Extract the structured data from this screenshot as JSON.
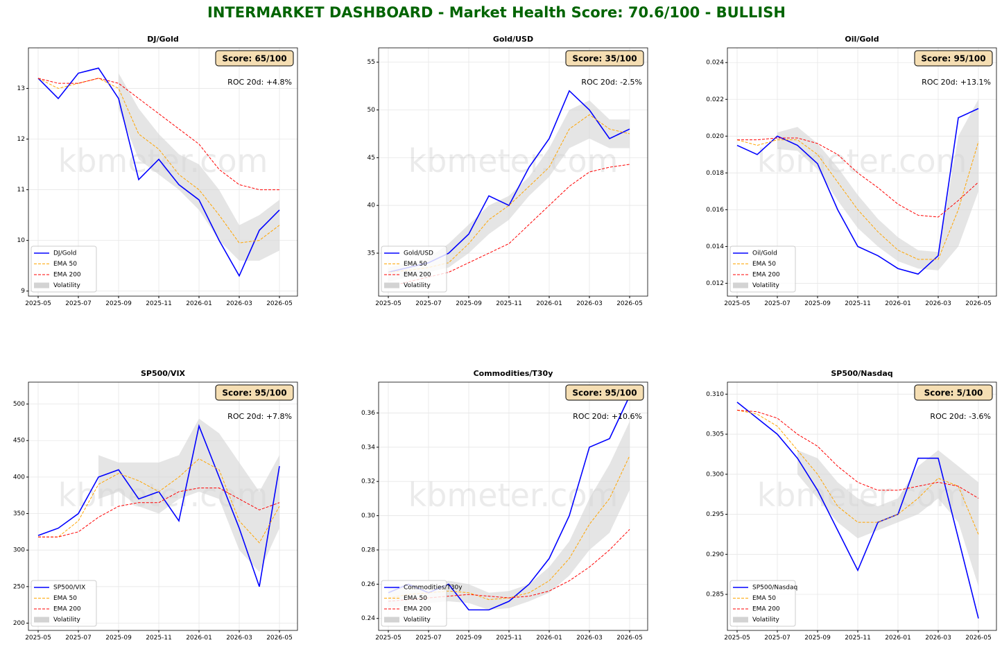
{
  "title": "INTERMARKET DASHBOARD - Market Health Score: 70.6/100 - BULLISH",
  "chart_data": [
    {
      "type": "line",
      "title": "DJ/Gold",
      "score": "Score: 65/100",
      "annotation": "ROC 20d: +4.8%",
      "watermark": "kbmeter.com",
      "x": [
        "2025-05",
        "2025-06",
        "2025-07",
        "2025-08",
        "2025-09",
        "2025-10",
        "2025-11",
        "2025-12",
        "2026-01",
        "2026-02",
        "2026-03",
        "2026-04",
        "2026-05"
      ],
      "xticks": [
        "2025-05",
        "2025-07",
        "2025-09",
        "2025-11",
        "2026-01",
        "2026-03",
        "2026-05"
      ],
      "ylim": [
        8.9,
        13.8
      ],
      "yticks": [
        9,
        10,
        11,
        12,
        13
      ],
      "grid": true,
      "series": [
        {
          "name": "DJ/Gold",
          "color": "#0000ff",
          "values": [
            13.2,
            12.8,
            13.3,
            13.4,
            12.8,
            11.2,
            11.6,
            11.1,
            10.8,
            10.0,
            9.3,
            10.2,
            10.6
          ]
        },
        {
          "name": "EMA 50",
          "color": "#ffa500",
          "dashed": true,
          "values": [
            13.2,
            13.0,
            13.1,
            13.2,
            13.0,
            12.1,
            11.8,
            11.3,
            11.0,
            10.5,
            9.95,
            10.0,
            10.3
          ]
        },
        {
          "name": "EMA 200",
          "color": "#ff0000",
          "dashed": true,
          "values": [
            13.2,
            13.1,
            13.1,
            13.2,
            13.1,
            12.8,
            12.5,
            12.2,
            11.9,
            11.4,
            11.1,
            11.0,
            11.0
          ]
        },
        {
          "name": "Volatility",
          "color": "#d3d3d3",
          "upper": [
            null,
            null,
            null,
            null,
            13.3,
            12.6,
            12.1,
            11.7,
            11.5,
            11.0,
            10.3,
            10.5,
            10.8
          ],
          "lower": [
            null,
            null,
            null,
            null,
            12.6,
            11.6,
            11.3,
            11.0,
            10.6,
            10.0,
            9.6,
            9.6,
            9.8
          ]
        }
      ]
    },
    {
      "type": "line",
      "title": "Gold/USD",
      "score": "Score: 35/100",
      "annotation": "ROC 20d: -2.5%",
      "watermark": "kbmeter.com",
      "x": [
        "2025-05",
        "2025-06",
        "2025-07",
        "2025-08",
        "2025-09",
        "2025-10",
        "2025-11",
        "2025-12",
        "2026-01",
        "2026-02",
        "2026-03",
        "2026-04",
        "2026-05"
      ],
      "xticks": [
        "2025-05",
        "2025-07",
        "2025-09",
        "2025-11",
        "2026-01",
        "2026-03",
        "2026-05"
      ],
      "ylim": [
        30.5,
        56.5
      ],
      "yticks": [
        35,
        40,
        45,
        50,
        55
      ],
      "grid": true,
      "series": [
        {
          "name": "Gold/USD",
          "color": "#0000ff",
          "values": [
            33,
            33.5,
            34,
            35,
            37,
            41,
            40,
            44,
            47,
            52,
            50,
            47,
            48
          ]
        },
        {
          "name": "EMA 50",
          "color": "#ffa500",
          "dashed": true,
          "values": [
            33,
            33.2,
            33.5,
            34,
            36,
            38.5,
            40,
            42,
            44,
            48,
            49.5,
            48,
            47.5
          ]
        },
        {
          "name": "EMA 200",
          "color": "#ff0000",
          "dashed": true,
          "values": [
            31.5,
            32,
            32.5,
            33,
            34,
            35,
            36,
            38,
            40,
            42,
            43.5,
            44,
            44.3
          ]
        },
        {
          "name": "Volatility",
          "color": "#d3d3d3",
          "upper": [
            33.5,
            34,
            34.5,
            36,
            38,
            40,
            41,
            43,
            46,
            50,
            51,
            49,
            49
          ],
          "lower": [
            32,
            32.5,
            33,
            33.5,
            35,
            37,
            38.5,
            41,
            43,
            46,
            47,
            46,
            46
          ]
        }
      ]
    },
    {
      "type": "line",
      "title": "Oil/Gold",
      "score": "Score: 95/100",
      "annotation": "ROC 20d: +13.1%",
      "watermark": "kbmeter.com",
      "x": [
        "2025-05",
        "2025-06",
        "2025-07",
        "2025-08",
        "2025-09",
        "2025-10",
        "2025-11",
        "2025-12",
        "2026-01",
        "2026-02",
        "2026-03",
        "2026-04",
        "2026-05"
      ],
      "xticks": [
        "2025-05",
        "2025-07",
        "2025-09",
        "2025-11",
        "2026-01",
        "2026-03",
        "2026-05"
      ],
      "ylim": [
        0.0113,
        0.0248
      ],
      "yticks": [
        0.012,
        0.014,
        0.016,
        0.018,
        {
          "value": 0.02,
          "label": "0.020"
        },
        0.022,
        0.024
      ],
      "grid": true,
      "series": [
        {
          "name": "Oil/Gold",
          "color": "#0000ff",
          "values": [
            0.0195,
            0.019,
            0.02,
            0.0195,
            0.0185,
            0.016,
            0.014,
            0.0135,
            0.0128,
            0.0125,
            0.0135,
            0.021,
            0.0215
          ]
        },
        {
          "name": "EMA 50",
          "color": "#ffa500",
          "dashed": true,
          "values": [
            0.0198,
            0.0195,
            0.0198,
            0.0198,
            0.019,
            0.0175,
            0.016,
            0.0148,
            0.0138,
            0.0133,
            0.0133,
            0.016,
            0.0197
          ]
        },
        {
          "name": "EMA 200",
          "color": "#ff0000",
          "dashed": true,
          "values": [
            0.0198,
            0.0198,
            0.0199,
            0.0199,
            0.0196,
            0.019,
            0.018,
            0.0172,
            0.0163,
            0.0157,
            0.0156,
            0.0165,
            0.0175
          ]
        },
        {
          "name": "Volatility",
          "color": "#d3d3d3",
          "upper": [
            null,
            null,
            0.0202,
            0.0205,
            0.0196,
            0.0183,
            0.0168,
            0.0155,
            0.0145,
            0.0138,
            0.0137,
            0.02,
            0.022
          ],
          "lower": [
            null,
            null,
            0.0193,
            0.0192,
            0.0182,
            0.0165,
            0.015,
            0.014,
            0.0132,
            0.0128,
            0.0127,
            0.014,
            0.017
          ]
        }
      ]
    },
    {
      "type": "line",
      "title": "SP500/VIX",
      "score": "Score: 95/100",
      "annotation": "ROC 20d: +7.8%",
      "watermark": "kbmeter.com",
      "x": [
        "2025-05",
        "2025-06",
        "2025-07",
        "2025-08",
        "2025-09",
        "2025-10",
        "2025-11",
        "2025-12",
        "2026-01",
        "2026-02",
        "2026-03",
        "2026-04",
        "2026-05"
      ],
      "xticks": [
        "2025-05",
        "2025-07",
        "2025-09",
        "2025-11",
        "2026-01",
        "2026-03",
        "2026-05"
      ],
      "ylim": [
        190,
        530
      ],
      "yticks": [
        200,
        250,
        300,
        350,
        400,
        450,
        500
      ],
      "grid": true,
      "series": [
        {
          "name": "SP500/VIX",
          "color": "#0000ff",
          "values": [
            320,
            330,
            350,
            400,
            410,
            370,
            380,
            340,
            470,
            400,
            330,
            250,
            415
          ]
        },
        {
          "name": "EMA 50",
          "color": "#ffa500",
          "dashed": true,
          "values": [
            318,
            318,
            340,
            390,
            405,
            395,
            380,
            400,
            425,
            410,
            340,
            310,
            360
          ]
        },
        {
          "name": "EMA 200",
          "color": "#ff0000",
          "dashed": true,
          "values": [
            318,
            318,
            325,
            345,
            360,
            365,
            365,
            380,
            385,
            385,
            370,
            355,
            365
          ]
        },
        {
          "name": "Volatility",
          "color": "#d3d3d3",
          "upper": [
            null,
            null,
            null,
            430,
            420,
            420,
            420,
            430,
            480,
            460,
            420,
            380,
            430
          ],
          "lower": [
            null,
            null,
            null,
            370,
            380,
            360,
            350,
            370,
            380,
            370,
            300,
            270,
            330
          ]
        }
      ]
    },
    {
      "type": "line",
      "title": "Commodities/T30y",
      "score": "Score: 95/100",
      "annotation": "ROC 20d: +10.6%",
      "watermark": "kbmeter.com",
      "x": [
        "2025-05",
        "2025-06",
        "2025-07",
        "2025-08",
        "2025-09",
        "2025-10",
        "2025-11",
        "2025-12",
        "2026-01",
        "2026-02",
        "2026-03",
        "2026-04",
        "2026-05"
      ],
      "xticks": [
        "2025-05",
        "2025-07",
        "2025-09",
        "2025-11",
        "2026-01",
        "2026-03",
        "2026-05"
      ],
      "ylim": [
        0.233,
        0.378
      ],
      "yticks": [
        0.24,
        0.26,
        0.28,
        {
          "value": 0.3,
          "label": "0.30"
        },
        0.32,
        0.34,
        0.36
      ],
      "grid": true,
      "series": [
        {
          "name": "Commodities/T30y",
          "color": "#0000ff",
          "values": [
            0.255,
            0.26,
            0.255,
            0.26,
            0.245,
            0.245,
            0.25,
            0.26,
            0.275,
            0.3,
            0.34,
            0.345,
            0.37
          ]
        },
        {
          "name": "EMA 50",
          "color": "#ffa500",
          "dashed": true,
          "values": [
            0.252,
            0.254,
            0.255,
            0.256,
            0.255,
            0.251,
            0.252,
            0.255,
            0.262,
            0.275,
            0.295,
            0.31,
            0.335
          ]
        },
        {
          "name": "EMA 200",
          "color": "#ff0000",
          "dashed": true,
          "values": [
            0.25,
            0.251,
            0.252,
            0.253,
            0.254,
            0.253,
            0.252,
            0.253,
            0.256,
            0.262,
            0.27,
            0.28,
            0.292
          ]
        },
        {
          "name": "Volatility",
          "color": "#d3d3d3",
          "upper": [
            0.258,
            0.26,
            0.26,
            0.262,
            0.26,
            0.255,
            0.256,
            0.26,
            0.27,
            0.285,
            0.31,
            0.33,
            0.355
          ],
          "lower": [
            0.246,
            0.248,
            0.249,
            0.25,
            0.249,
            0.245,
            0.246,
            0.25,
            0.255,
            0.265,
            0.28,
            0.29,
            0.315
          ]
        }
      ]
    },
    {
      "type": "line",
      "title": "SP500/Nasdaq",
      "score": "Score: 5/100",
      "annotation": "ROC 20d: -3.6%",
      "watermark": "kbmeter.com",
      "x": [
        "2025-05",
        "2025-06",
        "2025-07",
        "2025-08",
        "2025-09",
        "2025-10",
        "2025-11",
        "2025-12",
        "2026-01",
        "2026-02",
        "2026-03",
        "2026-04",
        "2026-05"
      ],
      "xticks": [
        "2025-05",
        "2025-07",
        "2025-09",
        "2025-11",
        "2026-01",
        "2026-03",
        "2026-05"
      ],
      "ylim": [
        0.2805,
        0.3115
      ],
      "yticks": [
        0.285,
        {
          "value": 0.29,
          "label": "0.290"
        },
        0.295,
        {
          "value": 0.3,
          "label": "0.300"
        },
        0.305,
        {
          "value": 0.31,
          "label": "0.310"
        }
      ],
      "grid": true,
      "series": [
        {
          "name": "SP500/Nasdaq",
          "color": "#0000ff",
          "values": [
            0.309,
            0.307,
            0.305,
            0.302,
            0.298,
            0.293,
            0.288,
            0.294,
            0.295,
            0.302,
            0.302,
            0.292,
            0.282
          ]
        },
        {
          "name": "EMA 50",
          "color": "#ffa500",
          "dashed": true,
          "values": [
            0.308,
            0.3075,
            0.306,
            0.303,
            0.3,
            0.296,
            0.294,
            0.294,
            0.295,
            0.297,
            0.2995,
            0.2985,
            0.2925
          ]
        },
        {
          "name": "EMA 200",
          "color": "#ff0000",
          "dashed": true,
          "values": [
            0.308,
            0.3078,
            0.307,
            0.305,
            0.3035,
            0.301,
            0.299,
            0.298,
            0.298,
            0.2985,
            0.299,
            0.2985,
            0.297
          ]
        },
        {
          "name": "Volatility",
          "color": "#d3d3d3",
          "upper": [
            null,
            null,
            null,
            0.303,
            0.302,
            0.299,
            0.297,
            0.296,
            0.297,
            0.301,
            0.303,
            0.301,
            0.299
          ],
          "lower": [
            null,
            null,
            null,
            0.3,
            0.297,
            0.294,
            0.292,
            0.293,
            0.294,
            0.295,
            0.297,
            0.294,
            0.286
          ]
        }
      ]
    }
  ]
}
